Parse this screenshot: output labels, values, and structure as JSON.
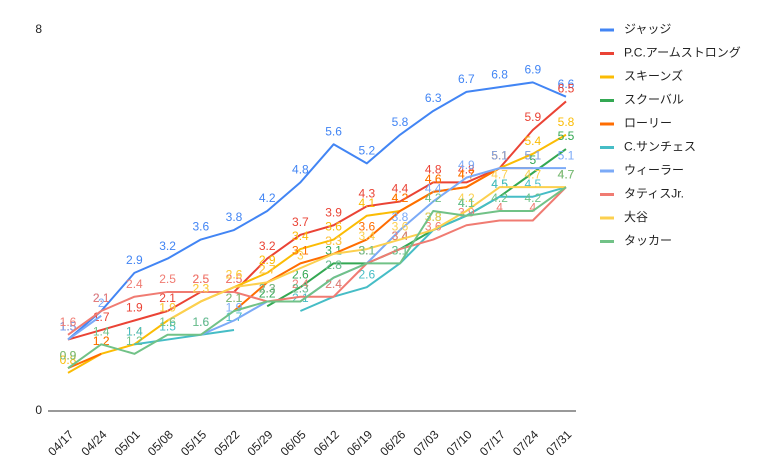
{
  "chart_data": {
    "type": "line",
    "x": [
      "04/17",
      "04/24",
      "05/01",
      "05/08",
      "05/15",
      "05/22",
      "05/29",
      "06/05",
      "06/12",
      "06/19",
      "06/26",
      "07/03",
      "07/10",
      "07/17",
      "07/24",
      "07/31"
    ],
    "ylim": [
      0,
      8
    ],
    "yticks": [
      0,
      8
    ],
    "grid": false,
    "legend": "right",
    "series": [
      {
        "name": "ジャッジ",
        "color": "#4285f4",
        "values": [
          1.5,
          2.1,
          2.9,
          3.2,
          3.6,
          3.8,
          4.2,
          4.8,
          5.6,
          5.2,
          5.8,
          6.3,
          6.7,
          6.8,
          6.9,
          6.6
        ]
      },
      {
        "name": "P.C.アームストロング",
        "color": "#ea4335",
        "values": [
          1.5,
          1.7,
          1.9,
          2.1,
          2.5,
          2.5,
          3.2,
          3.7,
          3.9,
          4.3,
          4.4,
          4.8,
          4.8,
          5.1,
          5.9,
          6.5
        ]
      },
      {
        "name": "スキーンズ",
        "color": "#fbbc04",
        "values": [
          0.8,
          1.2,
          1.4,
          1.9,
          2.3,
          2.6,
          2.9,
          3.4,
          3.6,
          4.1,
          4.2,
          4.6,
          4.7,
          5.1,
          5.4,
          5.8
        ]
      },
      {
        "name": "スクーバル",
        "color": "#34a853",
        "values": [
          null,
          null,
          null,
          null,
          null,
          null,
          2.2,
          2.6,
          3.1,
          3.1,
          3.4,
          3.8,
          4.1,
          4.5,
          5.0,
          5.5
        ]
      },
      {
        "name": "ローリー",
        "color": "#ff6d01",
        "values": [
          0.9,
          1.2,
          null,
          null,
          null,
          2.1,
          2.7,
          3.1,
          3.3,
          3.6,
          4.2,
          4.6,
          4.7,
          5.1,
          5.1,
          null
        ]
      },
      {
        "name": "C.サンチェス",
        "color": "#46bdc6",
        "values": [
          null,
          null,
          1.4,
          1.5,
          1.6,
          1.7,
          null,
          2.1,
          2.4,
          2.6,
          3.1,
          3.8,
          4.1,
          4.5,
          4.5,
          4.7
        ]
      },
      {
        "name": "ウィーラー",
        "color": "#7baaf7",
        "values": [
          1.5,
          2.0,
          null,
          null,
          1.6,
          1.9,
          2.3,
          2.3,
          2.8,
          3.1,
          3.8,
          4.4,
          4.9,
          5.1,
          5.1,
          5.1
        ]
      },
      {
        "name": "タティスJr.",
        "color": "#f07b72",
        "values": [
          1.6,
          2.1,
          2.4,
          2.5,
          2.5,
          2.5,
          2.3,
          2.4,
          2.4,
          3.1,
          3.4,
          3.6,
          3.9,
          4,
          4,
          4.7
        ]
      },
      {
        "name": "大谷",
        "color": "#fcd04f",
        "values": [
          0.9,
          null,
          null,
          1.9,
          2.3,
          2.6,
          2.7,
          3,
          3.3,
          3.4,
          3.6,
          3.8,
          4.2,
          4.7,
          4.7,
          4.7
        ]
      },
      {
        "name": "タッカー",
        "color": "#71c287",
        "values": [
          0.9,
          1.4,
          1.2,
          1.6,
          1.6,
          2.1,
          2.3,
          2.3,
          2.8,
          3.1,
          3.1,
          4.2,
          4.1,
          4.2,
          4.2,
          4.7
        ]
      }
    ]
  }
}
